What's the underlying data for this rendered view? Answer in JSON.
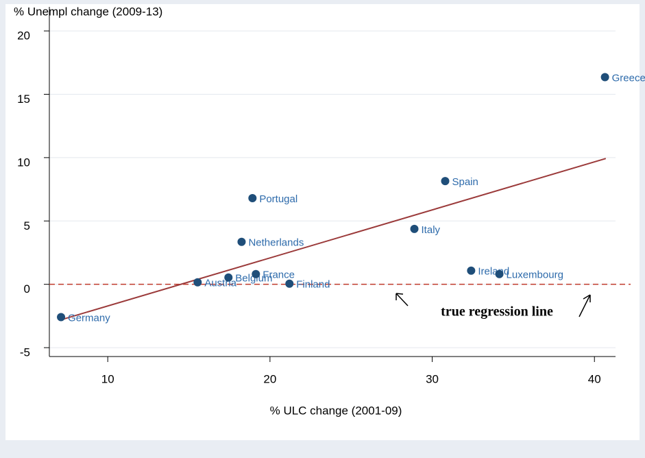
{
  "chart_data": {
    "type": "scatter",
    "title": "% Unempl change (2009-13)",
    "x_label": "% ULC change (2001-09)",
    "annotation": "true regression line",
    "xlim": [
      6.4,
      41.3
    ],
    "ylim": [
      -5.7,
      21.9
    ],
    "xticks": [
      10,
      20,
      30,
      40
    ],
    "yticks": [
      -5,
      0,
      5,
      10,
      15,
      20
    ],
    "grid": true,
    "series": [
      {
        "color": "#1f4e79",
        "label_color": "#2e6bab",
        "labels": [
          "Germany",
          "Austria",
          "Belgium",
          "France",
          "Finland",
          "Netherlands",
          "Portugal",
          "Italy",
          "Spain",
          "Ireland",
          "Luxembourg",
          "Greece"
        ],
        "x": [
          7.12,
          15.54,
          17.44,
          19.13,
          21.2,
          18.25,
          18.92,
          28.9,
          30.8,
          32.4,
          34.14,
          40.65
        ],
        "values": [
          -2.59,
          0.16,
          0.54,
          0.81,
          0.05,
          3.35,
          6.8,
          4.37,
          8.15,
          1.08,
          0.81,
          16.35
        ]
      }
    ],
    "fit_line": {
      "color": "#9b3a3a",
      "x": [
        7.12,
        40.7
      ],
      "values": [
        -2.8,
        9.93
      ]
    },
    "reference_line": {
      "color": "#c0392b",
      "value": 0,
      "dashed": true
    }
  }
}
